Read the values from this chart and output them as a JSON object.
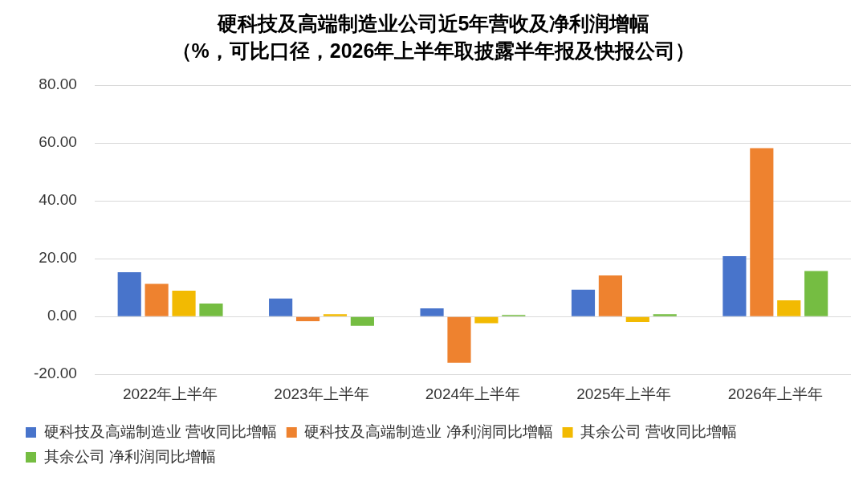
{
  "chart_data": {
    "type": "bar",
    "title": "硬科技及高端制造业公司近5年营收及净利润增幅",
    "subtitle": "（%，可比口径，2026年上半年取披露半年报及快报公司）",
    "categories": [
      "2022年上半年",
      "2023年上半年",
      "2024年上半年",
      "2025年上半年",
      "2026年上半年"
    ],
    "series": [
      {
        "name": "硬科技及高端制造业 营收同比增幅",
        "color": "#4874cb",
        "values": [
          15.3,
          6.2,
          2.8,
          9.3,
          20.9
        ]
      },
      {
        "name": "硬科技及高端制造业 净利润同比增幅",
        "color": "#ee822f",
        "values": [
          11.3,
          -1.6,
          -16.0,
          14.2,
          58.2
        ]
      },
      {
        "name": "其余公司 营收同比增幅",
        "color": "#f2ba02",
        "values": [
          8.9,
          0.8,
          -2.3,
          -1.9,
          5.6
        ]
      },
      {
        "name": "其余公司 净利润同比增幅",
        "color": "#75bd42",
        "values": [
          4.5,
          -3.2,
          0.5,
          0.8,
          15.7
        ]
      }
    ],
    "ylim": [
      -20,
      80
    ],
    "yticks": [
      {
        "value": -20,
        "label": "-20.00"
      },
      {
        "value": 0,
        "label": "0.00"
      },
      {
        "value": 20,
        "label": "20.00"
      },
      {
        "value": 40,
        "label": "40.00"
      },
      {
        "value": 60,
        "label": "60.00"
      },
      {
        "value": 80,
        "label": "80.00"
      }
    ],
    "grid": "y",
    "legend": "bottom"
  }
}
